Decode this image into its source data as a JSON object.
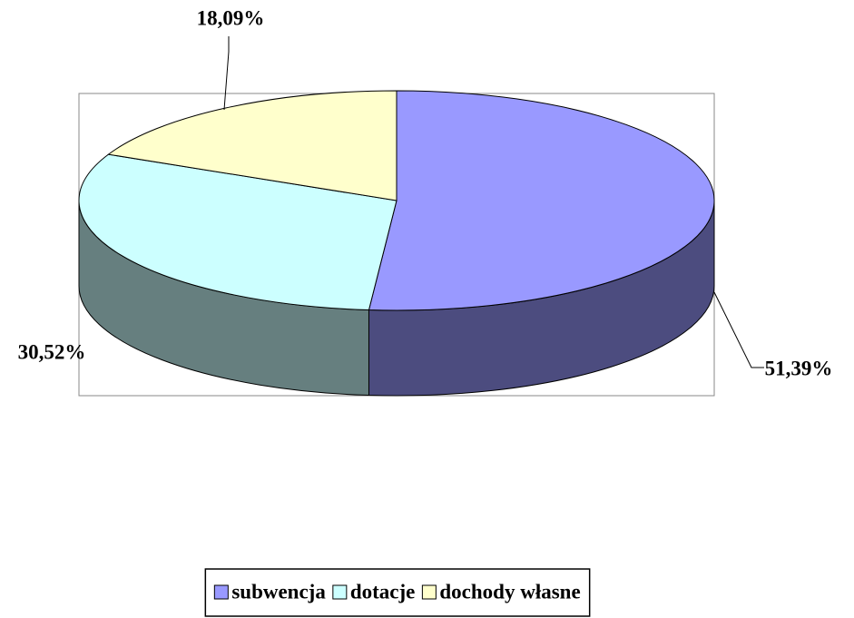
{
  "chart_data": {
    "type": "pie",
    "categories": [
      "subwencja",
      "dotacje",
      "dochody własne"
    ],
    "values": [
      51.39,
      30.52,
      18.09
    ],
    "value_labels": [
      "51,39%",
      "30,52%",
      "18,09%"
    ],
    "colors": [
      "#9999ff",
      "#ccffff",
      "#ffffcc"
    ],
    "legend": "bottom"
  }
}
